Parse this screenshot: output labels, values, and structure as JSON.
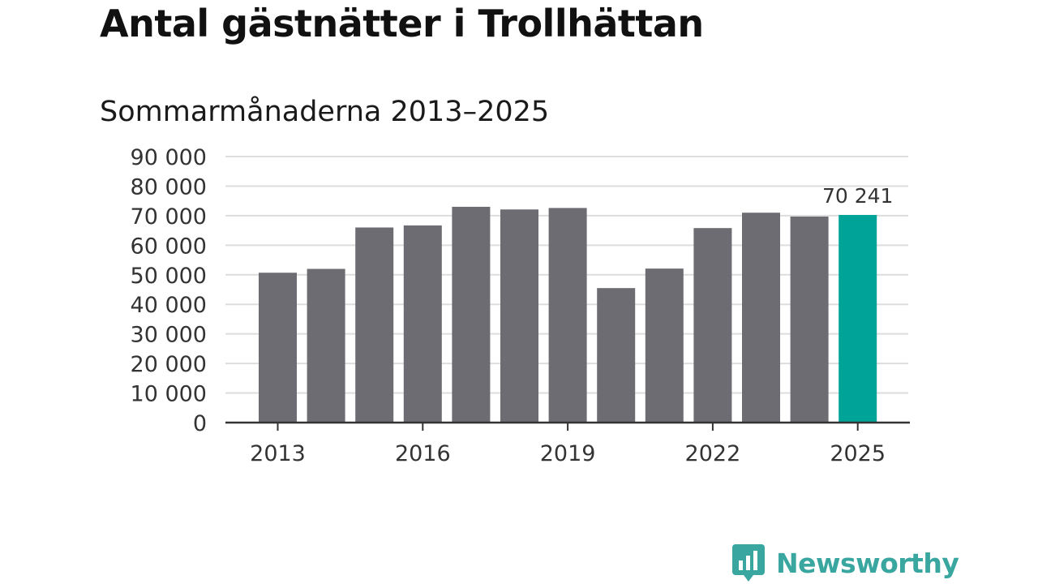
{
  "title": "Antal gästnätter i Trollhättan",
  "subtitle": "Sommarmånaderna 2013–2025",
  "brand": {
    "name": "Newsworthy",
    "icon": "bar-chart-speech-icon"
  },
  "colors": {
    "bar": "#6d6c72",
    "highlight": "#00a398",
    "grid": "#dddddd",
    "axis": "#333333",
    "brand": "#3aa6a0"
  },
  "chart_data": {
    "type": "bar",
    "categories": [
      2013,
      2014,
      2015,
      2016,
      2017,
      2018,
      2019,
      2020,
      2021,
      2022,
      2023,
      2024,
      2025
    ],
    "values": [
      50700,
      52000,
      66000,
      66700,
      73000,
      72100,
      72600,
      45500,
      52100,
      65800,
      71000,
      69700,
      70241
    ],
    "highlight_index": 12,
    "data_label": "70 241",
    "x_tick_labels": [
      "2013",
      "2016",
      "2019",
      "2022",
      "2025"
    ],
    "y_ticks": [
      0,
      10000,
      20000,
      30000,
      40000,
      50000,
      60000,
      70000,
      80000,
      90000
    ],
    "y_tick_labels": [
      "0",
      "10 000",
      "20 000",
      "30 000",
      "40 000",
      "50 000",
      "60 000",
      "70 000",
      "80 000",
      "90 000"
    ],
    "ylim": [
      0,
      90000
    ],
    "grid": true,
    "legend": false,
    "xlabel": "",
    "ylabel": ""
  }
}
